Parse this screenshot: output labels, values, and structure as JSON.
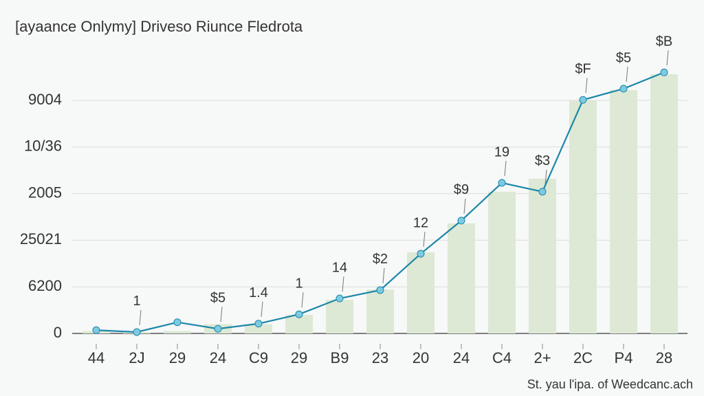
{
  "chart_data": {
    "type": "bar-line",
    "title": "[ayaance Onlymy] Driveso Riunce Fledrota",
    "footnote": "St. yau l'ipa. of Weedcanc.ach",
    "categories": [
      "44",
      "2J",
      "29",
      "24",
      "C9",
      "29",
      "B9",
      "23",
      "20",
      "24",
      "C4",
      "2+",
      "2C",
      "P4",
      "28"
    ],
    "series": [
      {
        "type": "bar",
        "color": "#dde9d4",
        "values": [
          0.05,
          0.03,
          0.05,
          0.2,
          0.2,
          0.4,
          0.72,
          0.94,
          1.74,
          2.36,
          3.04,
          3.32,
          4.99,
          5.22,
          5.56
        ]
      },
      {
        "type": "line",
        "color": "#1b87a8",
        "marker_color": "#7dcbe3",
        "values": [
          0.07,
          0.03,
          0.24,
          0.1,
          0.21,
          0.41,
          0.75,
          0.93,
          1.71,
          2.42,
          3.23,
          3.04,
          5.01,
          5.25,
          5.6
        ]
      }
    ],
    "annotations": [
      null,
      "1",
      null,
      "$5",
      "1.4",
      "1",
      "14",
      "$2",
      "12",
      "$9",
      "19",
      "$3",
      "$F",
      "$5",
      "$B"
    ],
    "ylim": [
      0,
      5.7
    ],
    "yticks": [
      {
        "value": 0,
        "label": "0"
      },
      {
        "value": 1,
        "label": "6200"
      },
      {
        "value": 2,
        "label": "25021"
      },
      {
        "value": 3,
        "label": "2005"
      },
      {
        "value": 4,
        "label": "10/36"
      },
      {
        "value": 5,
        "label": "9004"
      }
    ],
    "grid": true
  }
}
